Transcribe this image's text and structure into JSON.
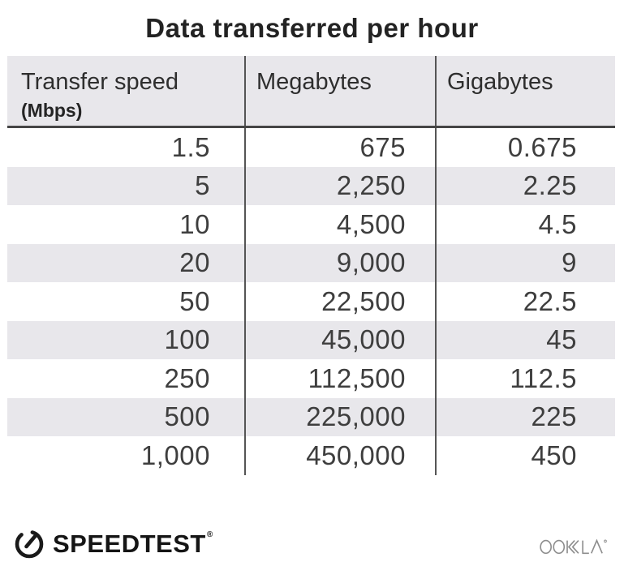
{
  "title": "Data transferred per hour",
  "table": {
    "header": {
      "col1_line1": "Transfer speed",
      "col1_line2": "(Mbps)",
      "col2": "Megabytes",
      "col3": "Gigabytes"
    },
    "rows": [
      {
        "speed": "1.5",
        "megabytes": "675",
        "gigabytes": "0.675"
      },
      {
        "speed": "5",
        "megabytes": "2,250",
        "gigabytes": "2.25"
      },
      {
        "speed": "10",
        "megabytes": "4,500",
        "gigabytes": "4.5"
      },
      {
        "speed": "20",
        "megabytes": "9,000",
        "gigabytes": "9"
      },
      {
        "speed": "50",
        "megabytes": "22,500",
        "gigabytes": "22.5"
      },
      {
        "speed": "100",
        "megabytes": "45,000",
        "gigabytes": "45"
      },
      {
        "speed": "250",
        "megabytes": "112,500",
        "gigabytes": "112.5"
      },
      {
        "speed": "500",
        "megabytes": "225,000",
        "gigabytes": "225"
      },
      {
        "speed": "1,000",
        "megabytes": "450,000",
        "gigabytes": "450"
      }
    ]
  },
  "footer": {
    "speedtest_text": "SPEEDTEST",
    "speedtest_mark": "®",
    "ookla_text": "OOKLA",
    "ookla_mark": "®"
  },
  "colors": {
    "stripe_gray": "#e8e7eb",
    "divider_gray": "#555555",
    "header_rule": "#454545",
    "title_text": "#232323",
    "number_text": "#3e3e3e",
    "logo_black": "#151515",
    "ookla_gray": "#8d8d8d"
  },
  "chart_data": {
    "type": "table",
    "title": "Data transferred per hour",
    "columns": [
      "Transfer speed (Mbps)",
      "Megabytes",
      "Gigabytes"
    ],
    "rows": [
      [
        1.5,
        675,
        0.675
      ],
      [
        5,
        2250,
        2.25
      ],
      [
        10,
        4500,
        4.5
      ],
      [
        20,
        9000,
        9
      ],
      [
        50,
        22500,
        22.5
      ],
      [
        100,
        45000,
        45
      ],
      [
        250,
        112500,
        112.5
      ],
      [
        500,
        225000,
        225
      ],
      [
        1000,
        450000,
        450
      ]
    ]
  }
}
